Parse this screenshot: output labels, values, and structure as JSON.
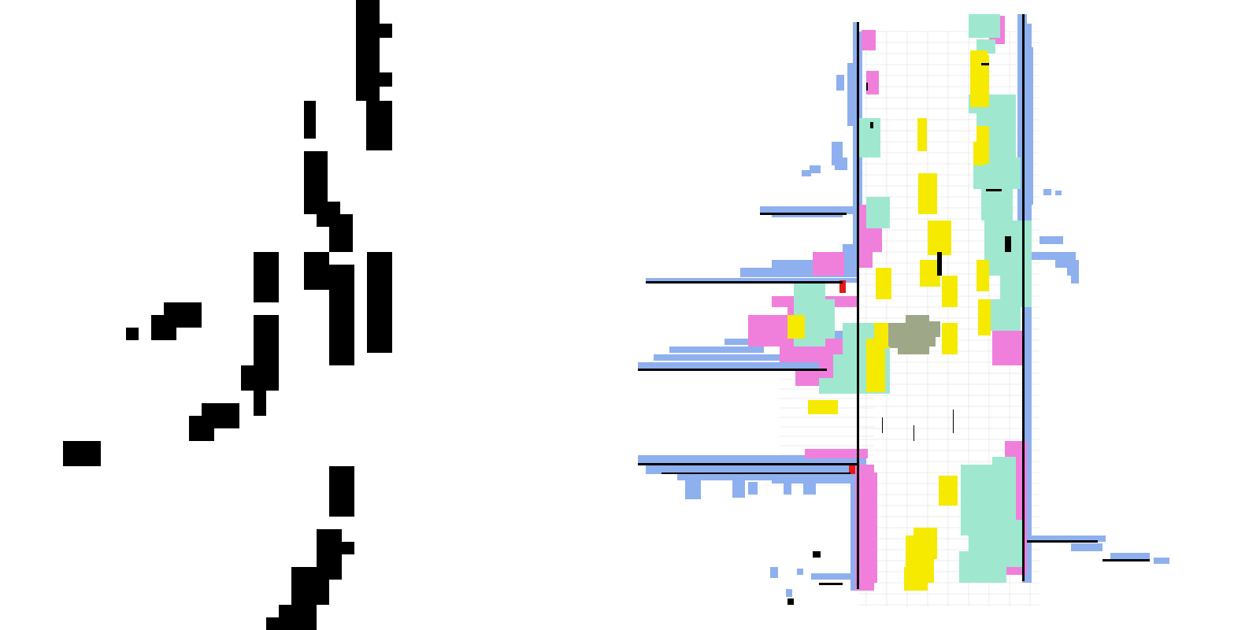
{
  "left_panel": {
    "name": "occupancy-grid",
    "cell_color": "#000000",
    "background": "#ffffff"
  },
  "right_panel": {
    "name": "semantic-voxel-map",
    "colors": {
      "wall": "#8fb0ee",
      "vegetation": "#9fe8cf",
      "sidewalk": "#f07fdc",
      "vehicle": "#f5ea00",
      "terrain": "#9ea888",
      "pole": "#e21a1a",
      "shadow": "#000000",
      "road_grid": "#d9d9d9"
    }
  }
}
